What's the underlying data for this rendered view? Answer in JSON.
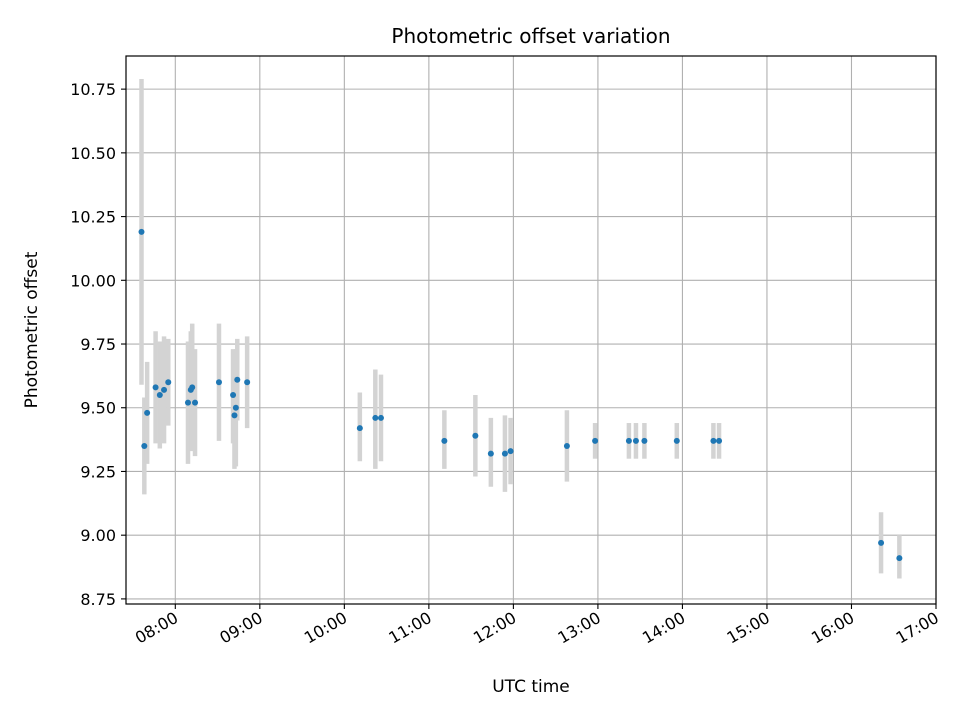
{
  "chart_data": {
    "type": "scatter",
    "title": "Photometric offset variation",
    "xlabel": "UTC time",
    "ylabel": "Photometric offset",
    "x_axis_type": "time",
    "xlim": [
      "07:25",
      "17:00"
    ],
    "ylim": [
      8.73,
      10.88
    ],
    "grid": true,
    "x_ticks": [
      "08:00",
      "09:00",
      "10:00",
      "11:00",
      "12:00",
      "13:00",
      "14:00",
      "15:00",
      "16:00",
      "17:00"
    ],
    "y_ticks": [
      8.75,
      9.0,
      9.25,
      9.5,
      9.75,
      10.0,
      10.25,
      10.5,
      10.75
    ],
    "y_tick_labels": [
      "8.75",
      "9.00",
      "9.25",
      "9.50",
      "9.75",
      "10.00",
      "10.25",
      "10.50",
      "10.75"
    ],
    "colors": {
      "marker": "#1f77b4",
      "errorbar": "#d3d3d3",
      "grid": "#b0b0b0",
      "axes": "#000000"
    },
    "series": [
      {
        "points": [
          {
            "x": "07:36",
            "y": 10.19,
            "low": 9.59,
            "high": 10.79
          },
          {
            "x": "07:38",
            "y": 9.35,
            "low": 9.16,
            "high": 9.54
          },
          {
            "x": "07:40",
            "y": 9.48,
            "low": 9.28,
            "high": 9.68
          },
          {
            "x": "07:46",
            "y": 9.58,
            "low": 9.36,
            "high": 9.8
          },
          {
            "x": "07:49",
            "y": 9.55,
            "low": 9.34,
            "high": 9.76
          },
          {
            "x": "07:52",
            "y": 9.57,
            "low": 9.36,
            "high": 9.78
          },
          {
            "x": "07:55",
            "y": 9.6,
            "low": 9.43,
            "high": 9.77
          },
          {
            "x": "08:09",
            "y": 9.52,
            "low": 9.28,
            "high": 9.76
          },
          {
            "x": "08:11",
            "y": 9.57,
            "low": 9.35,
            "high": 9.8
          },
          {
            "x": "08:12",
            "y": 9.58,
            "low": 9.33,
            "high": 9.83
          },
          {
            "x": "08:14",
            "y": 9.52,
            "low": 9.31,
            "high": 9.73
          },
          {
            "x": "08:31",
            "y": 9.6,
            "low": 9.37,
            "high": 9.83
          },
          {
            "x": "08:41",
            "y": 9.55,
            "low": 9.36,
            "high": 9.73
          },
          {
            "x": "08:42",
            "y": 9.47,
            "low": 9.26,
            "high": 9.68
          },
          {
            "x": "08:43",
            "y": 9.5,
            "low": 9.27,
            "high": 9.73
          },
          {
            "x": "08:44",
            "y": 9.61,
            "low": 9.45,
            "high": 9.77
          },
          {
            "x": "08:51",
            "y": 9.6,
            "low": 9.42,
            "high": 9.78
          },
          {
            "x": "10:11",
            "y": 9.42,
            "low": 9.29,
            "high": 9.56
          },
          {
            "x": "10:22",
            "y": 9.46,
            "low": 9.26,
            "high": 9.65
          },
          {
            "x": "10:26",
            "y": 9.46,
            "low": 9.29,
            "high": 9.63
          },
          {
            "x": "11:11",
            "y": 9.37,
            "low": 9.26,
            "high": 9.49
          },
          {
            "x": "11:33",
            "y": 9.39,
            "low": 9.23,
            "high": 9.55
          },
          {
            "x": "11:44",
            "y": 9.32,
            "low": 9.19,
            "high": 9.46
          },
          {
            "x": "11:54",
            "y": 9.32,
            "low": 9.17,
            "high": 9.47
          },
          {
            "x": "11:58",
            "y": 9.33,
            "low": 9.2,
            "high": 9.46
          },
          {
            "x": "12:38",
            "y": 9.35,
            "low": 9.21,
            "high": 9.49
          },
          {
            "x": "12:58",
            "y": 9.37,
            "low": 9.3,
            "high": 9.44
          },
          {
            "x": "13:22",
            "y": 9.37,
            "low": 9.3,
            "high": 9.44
          },
          {
            "x": "13:27",
            "y": 9.37,
            "low": 9.3,
            "high": 9.44
          },
          {
            "x": "13:33",
            "y": 9.37,
            "low": 9.3,
            "high": 9.44
          },
          {
            "x": "13:56",
            "y": 9.37,
            "low": 9.3,
            "high": 9.44
          },
          {
            "x": "14:22",
            "y": 9.37,
            "low": 9.3,
            "high": 9.44
          },
          {
            "x": "14:26",
            "y": 9.37,
            "low": 9.3,
            "high": 9.44
          },
          {
            "x": "16:21",
            "y": 8.97,
            "low": 8.85,
            "high": 9.09
          },
          {
            "x": "16:34",
            "y": 8.91,
            "low": 8.83,
            "high": 9.0
          }
        ]
      }
    ]
  }
}
